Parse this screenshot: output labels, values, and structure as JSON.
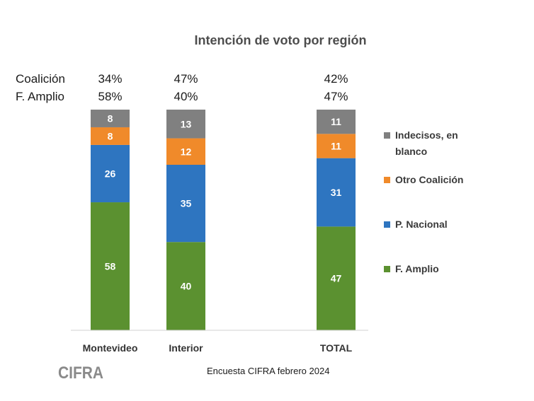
{
  "chart_data": {
    "type": "bar",
    "stacked": true,
    "title": "Intención de voto por región",
    "categories": [
      "Montevideo",
      "Interior",
      "TOTAL"
    ],
    "series": [
      {
        "name": "F. Amplio",
        "color": "#5b9130",
        "values": [
          58,
          40,
          47
        ]
      },
      {
        "name": "P. Nacional",
        "color": "#2e75c0",
        "values": [
          26,
          35,
          31
        ]
      },
      {
        "name": "Otro Coalición",
        "color": "#f08a2a",
        "values": [
          8,
          12,
          11
        ]
      },
      {
        "name": "Indecisos, en blanco",
        "color": "#808080",
        "values": [
          8,
          13,
          11
        ]
      }
    ],
    "legend_position": "right",
    "grid": false,
    "summary": [
      {
        "label": "Coalición",
        "values": [
          "34%",
          "47%",
          "42%"
        ]
      },
      {
        "label": "F. Amplio",
        "values": [
          "58%",
          "40%",
          "47%"
        ]
      }
    ]
  },
  "source": "Encuesta CIFRA febrero  2024",
  "logo_text": "CIFRA",
  "colors": {
    "axis": "#d0d0d0",
    "text": "#3a3a3a"
  }
}
